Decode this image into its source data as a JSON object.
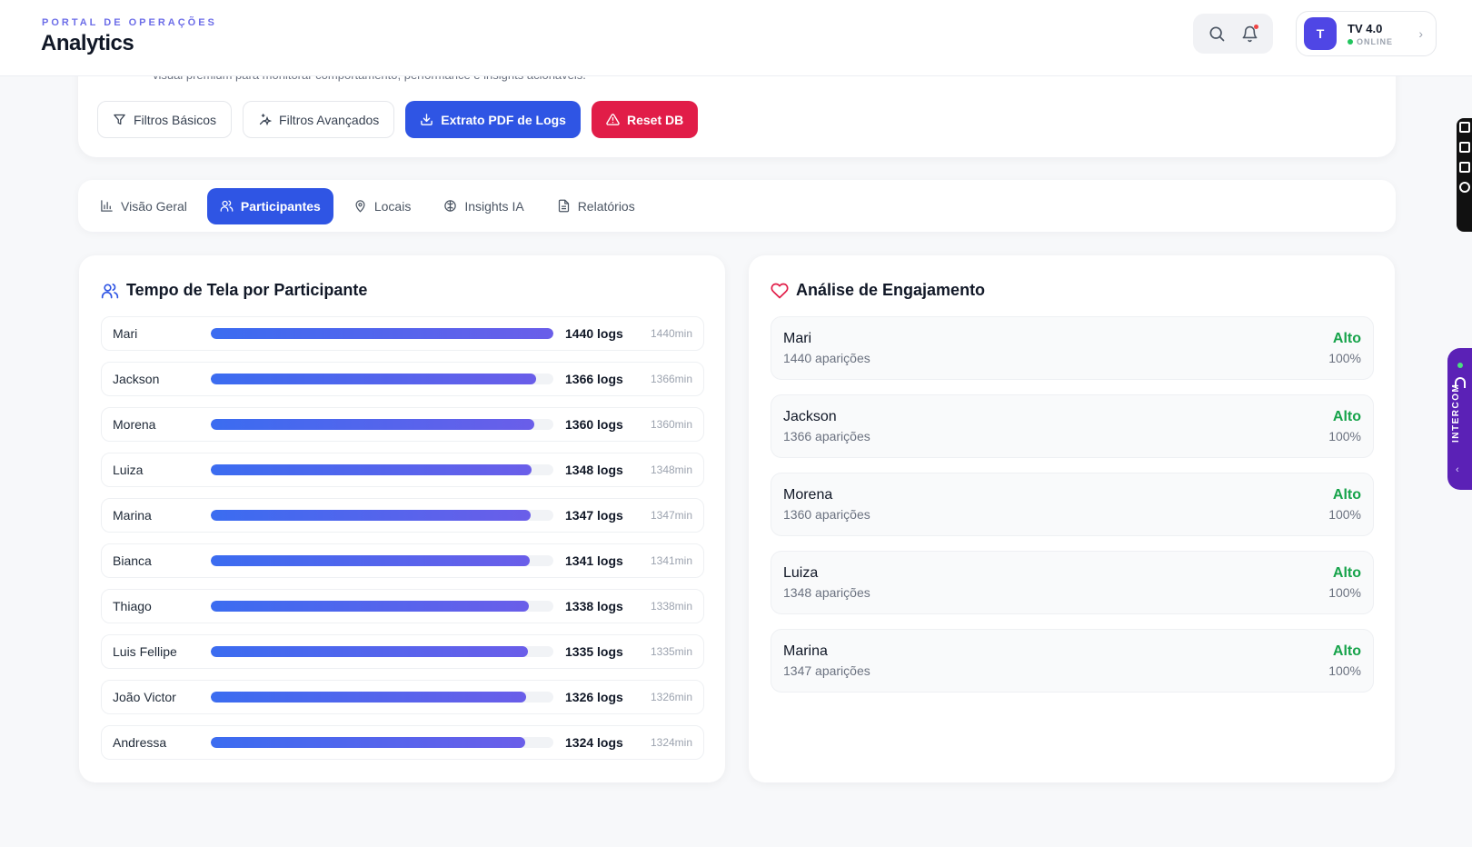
{
  "header": {
    "eyebrow": "PORTAL DE OPERAÇÕES",
    "title": "Analytics",
    "search_icon": "search-icon",
    "notification_icon": "bell-icon",
    "profile": {
      "initial": "T",
      "name": "TV 4.0",
      "status": "ONLINE"
    }
  },
  "intro": {
    "description_partial": "visual premium para monitorar comportamento, performance e insights acionáveis."
  },
  "actions": {
    "basic_filters": "Filtros Básicos",
    "advanced_filters": "Filtros Avançados",
    "export_pdf": "Extrato PDF de Logs",
    "reset_db": "Reset DB"
  },
  "tabs": [
    {
      "label": "Visão Geral",
      "icon": "bar-chart-icon"
    },
    {
      "label": "Participantes",
      "icon": "users-icon",
      "active": true
    },
    {
      "label": "Locais",
      "icon": "map-pin-icon"
    },
    {
      "label": "Insights IA",
      "icon": "brain-icon"
    },
    {
      "label": "Relatórios",
      "icon": "file-text-icon"
    }
  ],
  "screen_time": {
    "title": "Tempo de Tela por Participante",
    "rows": [
      {
        "name": "Mari",
        "logs": "1440 logs",
        "minutes": "1440min",
        "fill_pct": 100
      },
      {
        "name": "Jackson",
        "logs": "1366 logs",
        "minutes": "1366min",
        "fill_pct": 94.9
      },
      {
        "name": "Morena",
        "logs": "1360 logs",
        "minutes": "1360min",
        "fill_pct": 94.4
      },
      {
        "name": "Luiza",
        "logs": "1348 logs",
        "minutes": "1348min",
        "fill_pct": 93.6
      },
      {
        "name": "Marina",
        "logs": "1347 logs",
        "minutes": "1347min",
        "fill_pct": 93.5
      },
      {
        "name": "Bianca",
        "logs": "1341 logs",
        "minutes": "1341min",
        "fill_pct": 93.1
      },
      {
        "name": "Thiago",
        "logs": "1338 logs",
        "minutes": "1338min",
        "fill_pct": 92.9
      },
      {
        "name": "Luis Fellipe",
        "logs": "1335 logs",
        "minutes": "1335min",
        "fill_pct": 92.7
      },
      {
        "name": "João Victor",
        "logs": "1326 logs",
        "minutes": "1326min",
        "fill_pct": 92.1
      },
      {
        "name": "Andressa",
        "logs": "1324 logs",
        "minutes": "1324min",
        "fill_pct": 91.9
      }
    ]
  },
  "engagement": {
    "title": "Análise de Engajamento",
    "items": [
      {
        "name": "Mari",
        "appearances": "1440 aparições",
        "level": "Alto",
        "percent": "100%"
      },
      {
        "name": "Jackson",
        "appearances": "1366 aparições",
        "level": "Alto",
        "percent": "100%"
      },
      {
        "name": "Morena",
        "appearances": "1360 aparições",
        "level": "Alto",
        "percent": "100%"
      },
      {
        "name": "Luiza",
        "appearances": "1348 aparições",
        "level": "Alto",
        "percent": "100%"
      },
      {
        "name": "Marina",
        "appearances": "1347 aparições",
        "level": "Alto",
        "percent": "100%"
      }
    ]
  },
  "widgets": {
    "intercom_label": "INTERCOM"
  },
  "colors": {
    "accent": "#2f55e4",
    "danger": "#e11d48",
    "success": "#16a34a",
    "brand_eyebrow": "#6d6ee8",
    "intercom": "#5b21b6"
  }
}
